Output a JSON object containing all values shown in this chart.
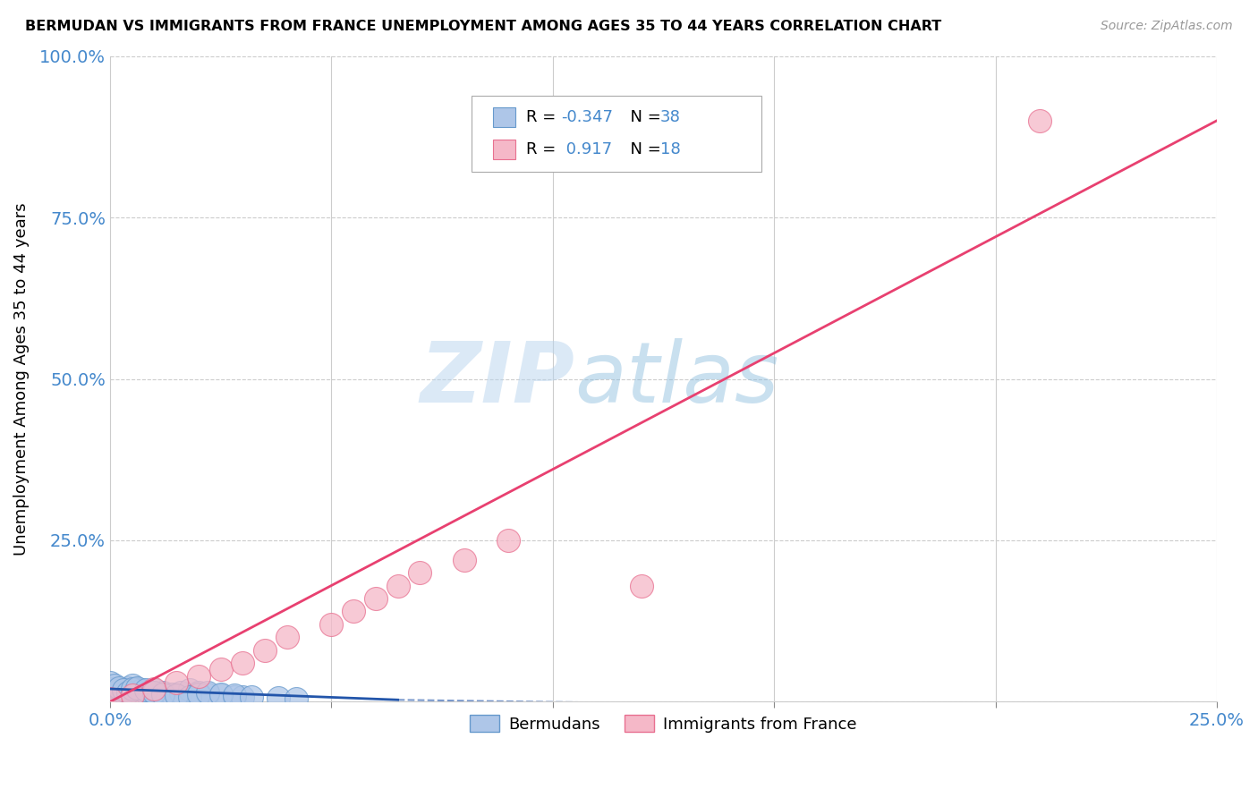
{
  "title": "BERMUDAN VS IMMIGRANTS FROM FRANCE UNEMPLOYMENT AMONG AGES 35 TO 44 YEARS CORRELATION CHART",
  "source": "Source: ZipAtlas.com",
  "ylabel": "Unemployment Among Ages 35 to 44 years",
  "xlim": [
    0.0,
    0.25
  ],
  "ylim": [
    0.0,
    1.0
  ],
  "xticks": [
    0.0,
    0.05,
    0.1,
    0.15,
    0.2,
    0.25
  ],
  "yticks": [
    0.0,
    0.25,
    0.5,
    0.75,
    1.0
  ],
  "xticklabels": [
    "0.0%",
    "",
    "",
    "",
    "",
    "25.0%"
  ],
  "yticklabels": [
    "",
    "25.0%",
    "50.0%",
    "75.0%",
    "100.0%"
  ],
  "bermudans_color": "#aec6e8",
  "france_color": "#f5b8c8",
  "bermudans_edge": "#6699cc",
  "france_edge": "#e87090",
  "regression_blue": "#2255aa",
  "regression_pink": "#e84070",
  "watermark_zip": "ZIP",
  "watermark_atlas": "atlas",
  "grid_color": "#cccccc",
  "tick_color": "#4488cc",
  "bermudans_x": [
    0.0,
    0.002,
    0.003,
    0.004,
    0.005,
    0.006,
    0.007,
    0.008,
    0.009,
    0.01,
    0.012,
    0.014,
    0.016,
    0.018,
    0.02,
    0.022,
    0.025,
    0.028,
    0.03,
    0.0,
    0.001,
    0.002,
    0.003,
    0.004,
    0.005,
    0.006,
    0.008,
    0.01,
    0.012,
    0.015,
    0.018,
    0.02,
    0.022,
    0.025,
    0.028,
    0.032,
    0.038,
    0.042
  ],
  "bermudans_y": [
    0.02,
    0.018,
    0.015,
    0.022,
    0.025,
    0.02,
    0.018,
    0.015,
    0.012,
    0.018,
    0.015,
    0.012,
    0.015,
    0.018,
    0.015,
    0.012,
    0.01,
    0.008,
    0.007,
    0.03,
    0.025,
    0.022,
    0.018,
    0.015,
    0.02,
    0.022,
    0.018,
    0.015,
    0.012,
    0.01,
    0.008,
    0.012,
    0.015,
    0.012,
    0.01,
    0.008,
    0.006,
    0.005
  ],
  "france_x": [
    0.0,
    0.005,
    0.01,
    0.015,
    0.02,
    0.025,
    0.03,
    0.035,
    0.04,
    0.05,
    0.055,
    0.06,
    0.065,
    0.07,
    0.08,
    0.09,
    0.12,
    0.21
  ],
  "france_y": [
    0.005,
    0.01,
    0.02,
    0.03,
    0.04,
    0.05,
    0.06,
    0.08,
    0.1,
    0.12,
    0.14,
    0.16,
    0.18,
    0.2,
    0.22,
    0.25,
    0.18,
    0.9
  ],
  "france_line_x": [
    0.0,
    0.25
  ],
  "france_line_y": [
    0.0,
    0.9
  ],
  "blue_line_x": [
    0.0,
    0.065
  ],
  "blue_line_y": [
    0.02,
    0.003
  ]
}
